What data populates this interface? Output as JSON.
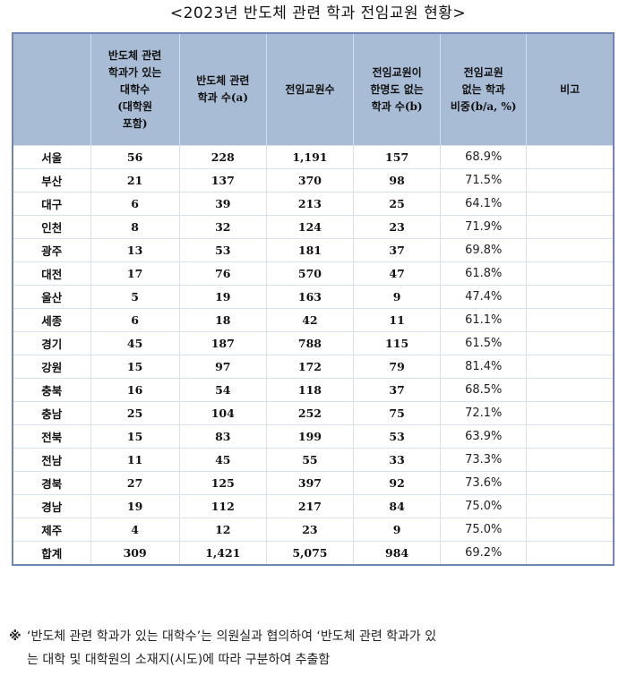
{
  "title": "<2023년 반도체 관련 학과 전임교원 현황>",
  "table": {
    "headers": [
      "",
      "반도체 관련\n학과가 있는\n대학수\n(대학원\n포함)",
      "반도체 관련\n학과 수(a)",
      "전임교원수",
      "전임교원이\n한명도 없는\n학과 수(b)",
      "전임교원\n없는 학과\n비중(b/a, %)",
      "비고"
    ],
    "rows": [
      {
        "region": "서울",
        "universities": "56",
        "departments_a": "228",
        "faculty": "1,191",
        "no_faculty_b": "157",
        "ratio": "68.9%",
        "note": ""
      },
      {
        "region": "부산",
        "universities": "21",
        "departments_a": "137",
        "faculty": "370",
        "no_faculty_b": "98",
        "ratio": "71.5%",
        "note": ""
      },
      {
        "region": "대구",
        "universities": "6",
        "departments_a": "39",
        "faculty": "213",
        "no_faculty_b": "25",
        "ratio": "64.1%",
        "note": ""
      },
      {
        "region": "인천",
        "universities": "8",
        "departments_a": "32",
        "faculty": "124",
        "no_faculty_b": "23",
        "ratio": "71.9%",
        "note": ""
      },
      {
        "region": "광주",
        "universities": "13",
        "departments_a": "53",
        "faculty": "181",
        "no_faculty_b": "37",
        "ratio": "69.8%",
        "note": ""
      },
      {
        "region": "대전",
        "universities": "17",
        "departments_a": "76",
        "faculty": "570",
        "no_faculty_b": "47",
        "ratio": "61.8%",
        "note": ""
      },
      {
        "region": "울산",
        "universities": "5",
        "departments_a": "19",
        "faculty": "163",
        "no_faculty_b": "9",
        "ratio": "47.4%",
        "note": ""
      },
      {
        "region": "세종",
        "universities": "6",
        "departments_a": "18",
        "faculty": "42",
        "no_faculty_b": "11",
        "ratio": "61.1%",
        "note": ""
      },
      {
        "region": "경기",
        "universities": "45",
        "departments_a": "187",
        "faculty": "788",
        "no_faculty_b": "115",
        "ratio": "61.5%",
        "note": ""
      },
      {
        "region": "강원",
        "universities": "15",
        "departments_a": "97",
        "faculty": "172",
        "no_faculty_b": "79",
        "ratio": "81.4%",
        "note": ""
      },
      {
        "region": "충북",
        "universities": "16",
        "departments_a": "54",
        "faculty": "118",
        "no_faculty_b": "37",
        "ratio": "68.5%",
        "note": ""
      },
      {
        "region": "충남",
        "universities": "25",
        "departments_a": "104",
        "faculty": "252",
        "no_faculty_b": "75",
        "ratio": "72.1%",
        "note": ""
      },
      {
        "region": "전북",
        "universities": "15",
        "departments_a": "83",
        "faculty": "199",
        "no_faculty_b": "53",
        "ratio": "63.9%",
        "note": ""
      },
      {
        "region": "전남",
        "universities": "11",
        "departments_a": "45",
        "faculty": "55",
        "no_faculty_b": "33",
        "ratio": "73.3%",
        "note": ""
      },
      {
        "region": "경북",
        "universities": "27",
        "departments_a": "125",
        "faculty": "397",
        "no_faculty_b": "92",
        "ratio": "73.6%",
        "note": ""
      },
      {
        "region": "경남",
        "universities": "19",
        "departments_a": "112",
        "faculty": "217",
        "no_faculty_b": "84",
        "ratio": "75.0%",
        "note": ""
      },
      {
        "region": "제주",
        "universities": "4",
        "departments_a": "12",
        "faculty": "23",
        "no_faculty_b": "9",
        "ratio": "75.0%",
        "note": ""
      },
      {
        "region": "합계",
        "universities": "309",
        "departments_a": "1,421",
        "faculty": "5,075",
        "no_faculty_b": "984",
        "ratio": "69.2%",
        "note": ""
      }
    ]
  },
  "footnote": {
    "mark": "※",
    "line1": "‘반도체 관련 학과가 있는 대학수’는 의원실과 협의하여 ‘반도체 관련 학과가 있",
    "line2": "는 대학 및 대학원의 소재지(시도)에 따라 구분하여 추출함"
  },
  "colors": {
    "header_bg": "#a9bcd6",
    "outer_border": "#6e87b5",
    "grid_line": "#d9e1ee"
  }
}
